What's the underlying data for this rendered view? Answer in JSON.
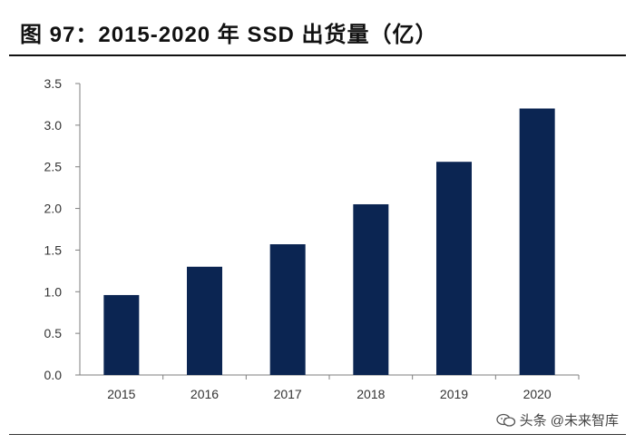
{
  "header": {
    "title": "图 97：2015-2020 年 SSD 出货量（亿）"
  },
  "watermark": {
    "text": "头条 @未来智库",
    "logo_icon": "wechat-icon"
  },
  "colors": {
    "bar": "#0b2552",
    "axis": "#7f7f7f",
    "text": "#333333"
  },
  "chart_data": {
    "type": "bar",
    "title": "2015-2020 年 SSD 出货量（亿）",
    "xlabel": "",
    "ylabel": "",
    "categories": [
      "2015",
      "2016",
      "2017",
      "2018",
      "2019",
      "2020"
    ],
    "values": [
      0.96,
      1.3,
      1.57,
      2.05,
      2.56,
      3.2
    ],
    "ylim": [
      0,
      3.5
    ],
    "yticks": [
      "0.0",
      "0.5",
      "1.0",
      "1.5",
      "2.0",
      "2.5",
      "3.0",
      "3.5"
    ],
    "grid": false,
    "legend": "none"
  }
}
